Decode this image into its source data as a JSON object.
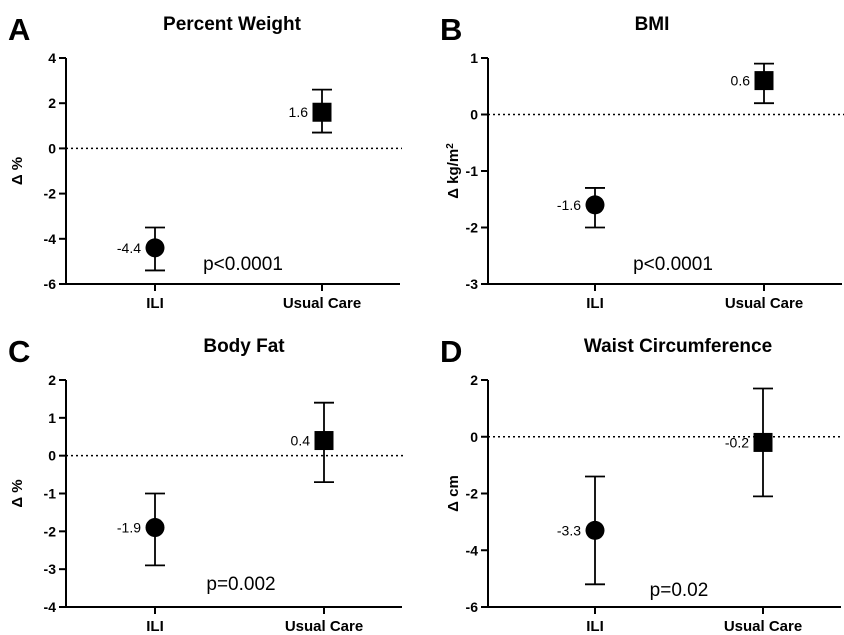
{
  "colors": {
    "marker": "#000000",
    "axis": "#000000",
    "background": "#ffffff"
  },
  "chart_data": [
    {
      "type": "scatter",
      "panel_letter": "A",
      "title": "Percent Weight",
      "ylabel": "Δ %",
      "xlabel": "",
      "categories": [
        "ILI",
        "Usual Care"
      ],
      "ylim": [
        -6,
        4
      ],
      "yticks": [
        "4",
        "2",
        "0",
        "-2",
        "-4",
        "-6"
      ],
      "reference_line": 0,
      "grid": false,
      "points": [
        {
          "category": "ILI",
          "value": -4.4,
          "label": "-4.4",
          "err_low": -5.4,
          "err_high": -3.5,
          "marker": "circle"
        },
        {
          "category": "Usual Care",
          "value": 1.6,
          "label": "1.6",
          "err_low": 0.7,
          "err_high": 2.6,
          "marker": "square"
        }
      ],
      "annotation": "p<0.0001"
    },
    {
      "type": "scatter",
      "panel_letter": "B",
      "title": "BMI",
      "ylabel": "Δ kg/m",
      "ylabel_superscript": "2",
      "xlabel": "",
      "categories": [
        "ILI",
        "Usual Care"
      ],
      "ylim": [
        -3,
        1
      ],
      "yticks": [
        "1",
        "0",
        "-1",
        "-2",
        "-3"
      ],
      "reference_line": 0,
      "grid": false,
      "points": [
        {
          "category": "ILI",
          "value": -1.6,
          "label": "-1.6",
          "err_low": -2.0,
          "err_high": -1.3,
          "marker": "circle"
        },
        {
          "category": "Usual Care",
          "value": 0.6,
          "label": "0.6",
          "err_low": 0.2,
          "err_high": 0.9,
          "marker": "square"
        }
      ],
      "annotation": "p<0.0001"
    },
    {
      "type": "scatter",
      "panel_letter": "C",
      "title": "Body Fat",
      "ylabel": "Δ %",
      "xlabel": "",
      "categories": [
        "ILI",
        "Usual Care"
      ],
      "ylim": [
        -4,
        2
      ],
      "yticks": [
        "2",
        "1",
        "0",
        "-1",
        "-2",
        "-3",
        "-4"
      ],
      "reference_line": 0,
      "grid": false,
      "points": [
        {
          "category": "ILI",
          "value": -1.9,
          "label": "-1.9",
          "err_low": -2.9,
          "err_high": -1.0,
          "marker": "circle"
        },
        {
          "category": "Usual Care",
          "value": 0.4,
          "label": "0.4",
          "err_low": -0.7,
          "err_high": 1.4,
          "marker": "square"
        }
      ],
      "annotation": "p=0.002"
    },
    {
      "type": "scatter",
      "panel_letter": "D",
      "title": "Waist Circumference",
      "ylabel": "Δ cm",
      "xlabel": "",
      "categories": [
        "ILI",
        "Usual Care"
      ],
      "ylim": [
        -6,
        2
      ],
      "yticks": [
        "2",
        "0",
        "-2",
        "-4",
        "-6"
      ],
      "reference_line": 0,
      "grid": false,
      "points": [
        {
          "category": "ILI",
          "value": -3.3,
          "label": "-3.3",
          "err_low": -5.2,
          "err_high": -1.4,
          "marker": "circle"
        },
        {
          "category": "Usual Care",
          "value": -0.2,
          "label": "-0.2",
          "err_low": -2.1,
          "err_high": 1.7,
          "marker": "square"
        }
      ],
      "annotation": "p=0.02"
    }
  ]
}
